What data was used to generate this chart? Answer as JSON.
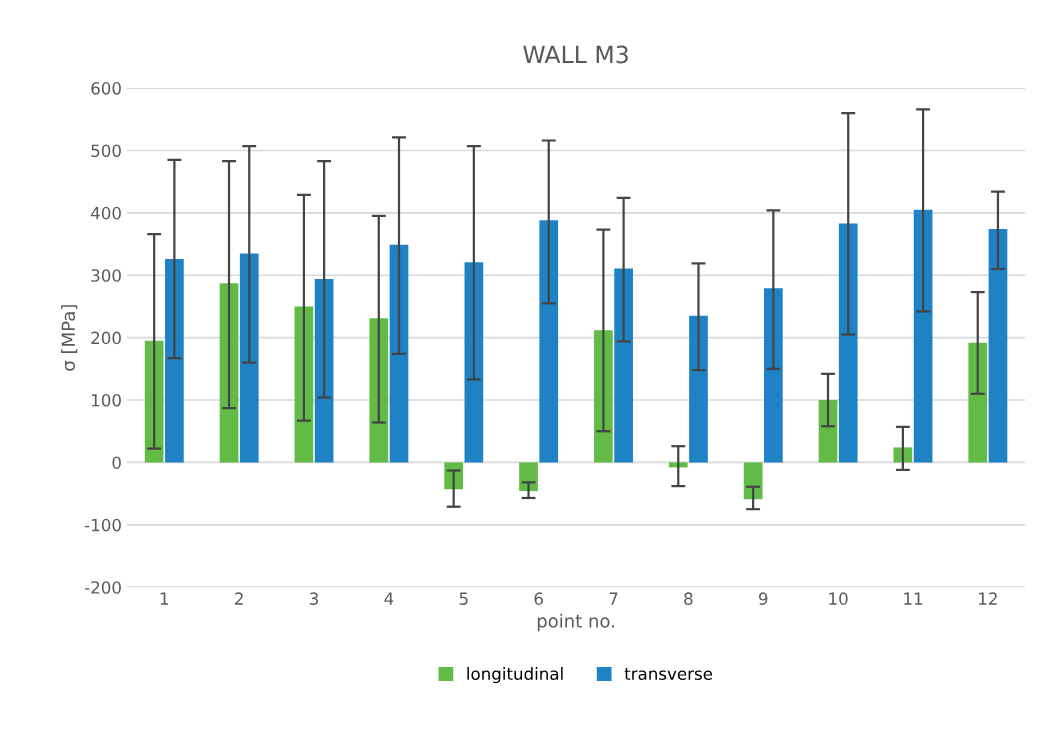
{
  "chart_data": {
    "type": "bar",
    "title": "WALL M3",
    "xlabel": "point no.",
    "ylabel": "σ [MPa]",
    "categories": [
      "1",
      "2",
      "3",
      "4",
      "5",
      "6",
      "7",
      "8",
      "9",
      "10",
      "11",
      "12"
    ],
    "series": [
      {
        "name": "longitudinal",
        "color": "#62bb46",
        "values": [
          195,
          287,
          250,
          231,
          -43,
          -46,
          212,
          -8,
          -59,
          100,
          24,
          192
        ],
        "errors": [
          [
            22,
            366
          ],
          [
            87,
            483
          ],
          [
            67,
            429
          ],
          [
            64,
            395
          ],
          [
            -71,
            -13
          ],
          [
            -57,
            -32
          ],
          [
            50,
            373
          ],
          [
            -38,
            26
          ],
          [
            -75,
            -39
          ],
          [
            58,
            142
          ],
          [
            -12,
            57
          ],
          [
            110,
            273
          ]
        ]
      },
      {
        "name": "transverse",
        "color": "#1f82c4",
        "values": [
          326,
          335,
          294,
          349,
          321,
          388,
          311,
          235,
          279,
          383,
          405,
          374
        ],
        "errors": [
          [
            167,
            485
          ],
          [
            160,
            507
          ],
          [
            104,
            483
          ],
          [
            174,
            521
          ],
          [
            133,
            507
          ],
          [
            255,
            516
          ],
          [
            194,
            424
          ],
          [
            148,
            319
          ],
          [
            150,
            404
          ],
          [
            205,
            560
          ],
          [
            242,
            566
          ],
          [
            310,
            434
          ]
        ]
      }
    ],
    "ylim": [
      -200,
      600
    ],
    "yticks": [
      -200,
      -100,
      0,
      100,
      200,
      300,
      400,
      500,
      600
    ],
    "grid": "y",
    "legend": "bottom"
  }
}
